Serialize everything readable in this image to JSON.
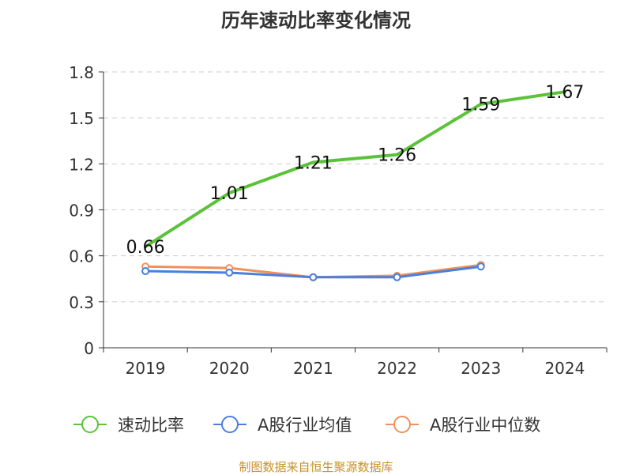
{
  "chart_data": {
    "type": "line",
    "title": "历年速动比率变化情况",
    "categories": [
      "2019",
      "2020",
      "2021",
      "2022",
      "2023",
      "2024"
    ],
    "y_ticks": [
      "0",
      "0.3",
      "0.6",
      "0.9",
      "1.2",
      "1.5",
      "1.8"
    ],
    "ylim": [
      0,
      1.8
    ],
    "grid": true,
    "legend_position": "bottom",
    "series": [
      {
        "name": "速动比率",
        "color": "#5cc23a",
        "values": [
          0.66,
          1.01,
          1.21,
          1.26,
          1.59,
          1.67
        ],
        "labels": [
          "0.66",
          "1.01",
          "1.21",
          "1.26",
          "1.59",
          "1.67"
        ]
      },
      {
        "name": "A股行业均值",
        "color": "#4a7fdb",
        "values": [
          0.5,
          0.49,
          0.46,
          0.46,
          0.53,
          null
        ]
      },
      {
        "name": "A股行业中位数",
        "color": "#f0905a",
        "values": [
          0.53,
          0.52,
          0.46,
          0.47,
          0.54,
          null
        ]
      }
    ]
  },
  "source": "制图数据来自恒生聚源数据库"
}
